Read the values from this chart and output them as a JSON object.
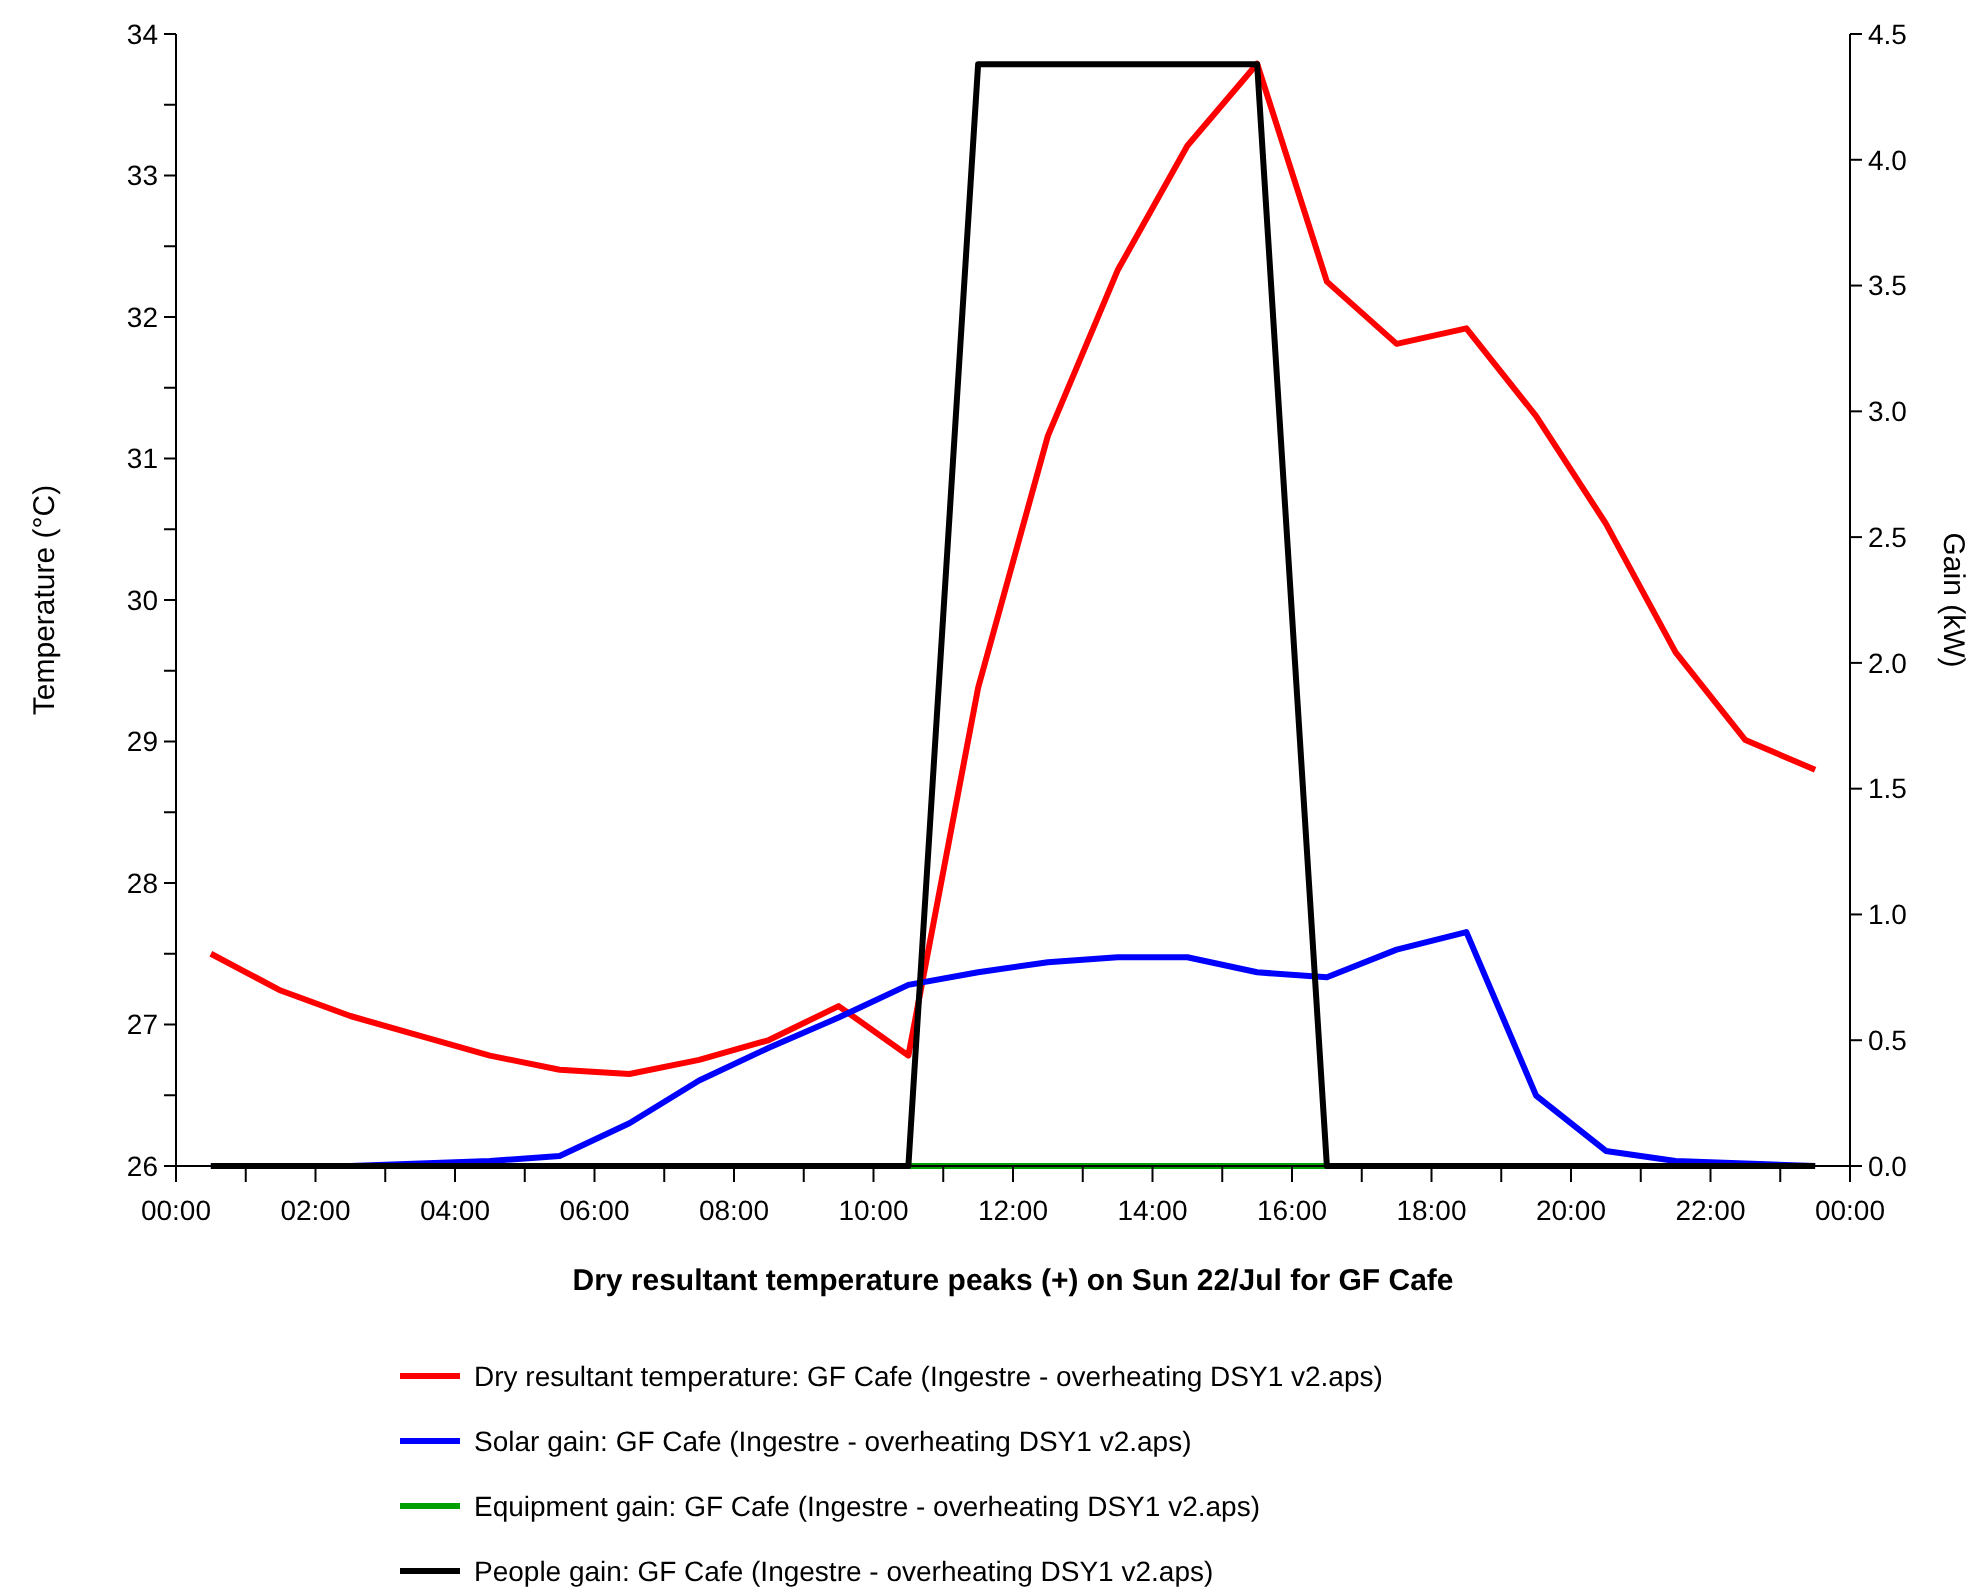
{
  "chart_data": {
    "type": "line",
    "xlabel": "Dry resultant temperature peaks (+) on Sun 22/Jul for GF Cafe",
    "ylabel": "Temperature (°C)",
    "y2label": "Gain (kW)",
    "legend": "bottom",
    "x": [
      0.5,
      1.5,
      2.5,
      3.5,
      4.5,
      5.5,
      6.5,
      7.5,
      8.5,
      9.5,
      10.5,
      11.5,
      12.5,
      13.5,
      14.5,
      15.5,
      16.5,
      17.5,
      18.5,
      19.5,
      20.5,
      21.5,
      22.5,
      23.5
    ],
    "series": [
      {
        "name": "Dry resultant temperature: GF Cafe  (Ingestre - overheating DSY1 v2.aps)",
        "color": "#ff0000",
        "values": [
          27.5,
          27.24,
          27.06,
          26.92,
          26.78,
          26.68,
          26.65,
          26.75,
          26.89,
          27.13,
          26.78,
          29.38,
          31.16,
          32.33,
          33.21,
          33.79,
          32.25,
          31.81,
          31.92,
          31.3,
          30.54,
          29.63,
          29.01,
          28.8
        ]
      },
      {
        "name": "Solar gain: GF Cafe  (Ingestre - overheating DSY1 v2.aps)",
        "color": "#0000ff",
        "axis": "y2",
        "values": [
          0,
          0,
          0,
          0.01,
          0.02,
          0.04,
          0.17,
          0.34,
          0.47,
          0.59,
          0.72,
          0.77,
          0.81,
          0.83,
          0.83,
          0.77,
          0.75,
          0.86,
          0.93,
          0.28,
          0.06,
          0.02,
          0.01,
          0
        ]
      },
      {
        "name": "Equipment gain: GF Cafe  (Ingestre - overheating DSY1 v2.aps)",
        "color": "#00a000",
        "axis": "y2",
        "values": [
          null,
          null,
          null,
          null,
          null,
          null,
          null,
          null,
          null,
          null,
          0,
          0,
          0,
          0,
          0,
          0,
          0,
          null,
          null,
          null,
          null,
          null,
          null,
          null
        ]
      },
      {
        "name": "People gain: GF Cafe  (Ingestre - overheating DSY1 v2.aps)",
        "color": "#000000",
        "axis": "y2",
        "values": [
          0,
          0,
          0,
          0,
          0,
          0,
          0,
          0,
          0,
          0,
          0,
          4.38,
          4.38,
          4.38,
          4.38,
          4.38,
          0,
          0,
          0,
          0,
          0,
          0,
          0,
          0
        ]
      }
    ],
    "xlim": [
      0,
      24
    ],
    "xticks": [
      {
        "value": 0,
        "label": "00:00"
      },
      {
        "value": 1,
        "label": null
      },
      {
        "value": 2,
        "label": "02:00"
      },
      {
        "value": 3,
        "label": null
      },
      {
        "value": 4,
        "label": "04:00"
      },
      {
        "value": 5,
        "label": null
      },
      {
        "value": 6,
        "label": "06:00"
      },
      {
        "value": 7,
        "label": null
      },
      {
        "value": 8,
        "label": "08:00"
      },
      {
        "value": 9,
        "label": null
      },
      {
        "value": 10,
        "label": "10:00"
      },
      {
        "value": 11,
        "label": null
      },
      {
        "value": 12,
        "label": "12:00"
      },
      {
        "value": 13,
        "label": null
      },
      {
        "value": 14,
        "label": "14:00"
      },
      {
        "value": 15,
        "label": null
      },
      {
        "value": 16,
        "label": "16:00"
      },
      {
        "value": 17,
        "label": null
      },
      {
        "value": 18,
        "label": "18:00"
      },
      {
        "value": 19,
        "label": null
      },
      {
        "value": 20,
        "label": "20:00"
      },
      {
        "value": 21,
        "label": null
      },
      {
        "value": 22,
        "label": "22:00"
      },
      {
        "value": 23,
        "label": null
      },
      {
        "value": 24,
        "label": "00:00"
      }
    ],
    "ylim": [
      26,
      34
    ],
    "yticks": [
      26,
      {
        "value": 26.5,
        "label": null
      },
      27,
      {
        "value": 27.5,
        "label": null
      },
      28,
      {
        "value": 28.5,
        "label": null
      },
      29,
      {
        "value": 29.5,
        "label": null
      },
      30,
      {
        "value": 30.5,
        "label": null
      },
      31,
      {
        "value": 31.5,
        "label": null
      },
      32,
      {
        "value": 32.5,
        "label": null
      },
      33,
      {
        "value": 33.5,
        "label": null
      },
      34
    ],
    "y2lim": [
      0,
      4.5
    ],
    "y2ticks": [
      {
        "value": 0,
        "label": "0.0"
      },
      0.5,
      {
        "value": 1,
        "label": "1.0"
      },
      1.5,
      {
        "value": 2,
        "label": "2.0"
      },
      2.5,
      {
        "value": 3,
        "label": "3.0"
      },
      3.5,
      {
        "value": 4,
        "label": "4.0"
      },
      4.5
    ]
  }
}
